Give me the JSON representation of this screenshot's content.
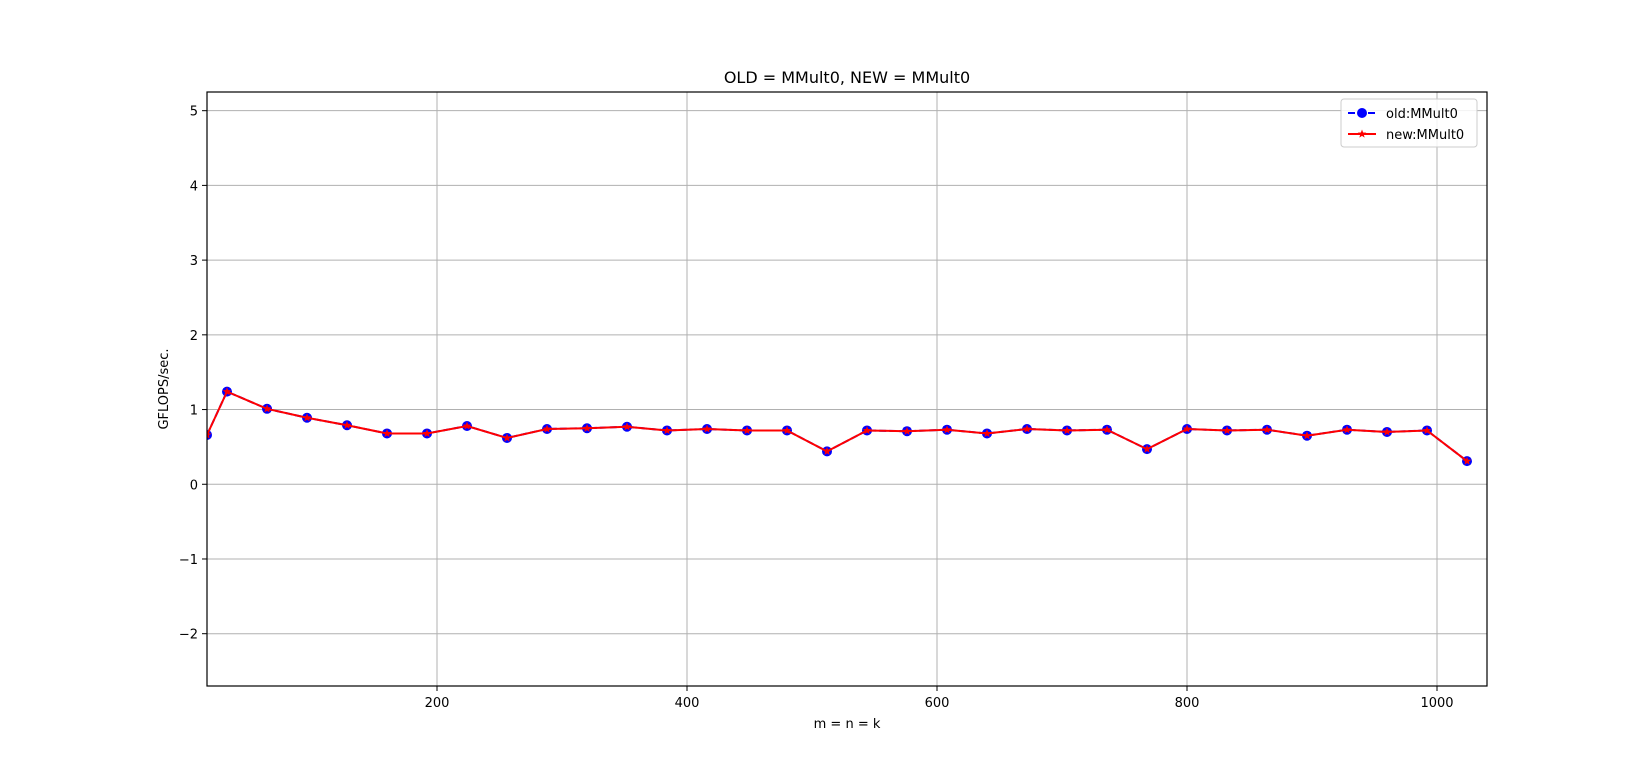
{
  "chart_data": {
    "type": "line",
    "title": "OLD = MMult0, NEW = MMult0",
    "xlabel": "m = n = k",
    "ylabel": "GFLOPS/sec.",
    "xlim": [
      16,
      1040
    ],
    "ylim": [
      -2.7,
      5.25
    ],
    "xticks": [
      200,
      400,
      600,
      800,
      1000
    ],
    "yticks": [
      -2,
      -1,
      0,
      1,
      2,
      3,
      4,
      5
    ],
    "grid": true,
    "legend_position": "top-right",
    "x": [
      16,
      32,
      64,
      96,
      128,
      160,
      192,
      224,
      256,
      288,
      320,
      352,
      384,
      416,
      448,
      480,
      512,
      544,
      576,
      608,
      640,
      672,
      704,
      736,
      768,
      800,
      832,
      864,
      896,
      928,
      960,
      992,
      1024
    ],
    "series": [
      {
        "name": "old:MMult0",
        "color": "#0000ff",
        "line_style": "dashed",
        "marker": "circle",
        "values": [
          0.66,
          1.24,
          1.01,
          0.89,
          0.79,
          0.68,
          0.68,
          0.78,
          0.62,
          0.74,
          0.75,
          0.77,
          0.72,
          0.74,
          0.72,
          0.72,
          0.44,
          0.72,
          0.71,
          0.73,
          0.68,
          0.74,
          0.72,
          0.73,
          0.47,
          0.74,
          0.72,
          0.73,
          0.65,
          0.73,
          0.7,
          0.72,
          0.31
        ]
      },
      {
        "name": "new:MMult0",
        "color": "#ff0000",
        "line_style": "solid",
        "marker": "star",
        "values": [
          0.66,
          1.24,
          1.01,
          0.89,
          0.79,
          0.68,
          0.68,
          0.78,
          0.62,
          0.74,
          0.75,
          0.77,
          0.72,
          0.74,
          0.72,
          0.72,
          0.44,
          0.72,
          0.71,
          0.73,
          0.68,
          0.74,
          0.72,
          0.73,
          0.47,
          0.74,
          0.72,
          0.73,
          0.65,
          0.73,
          0.7,
          0.72,
          0.31
        ]
      }
    ]
  }
}
